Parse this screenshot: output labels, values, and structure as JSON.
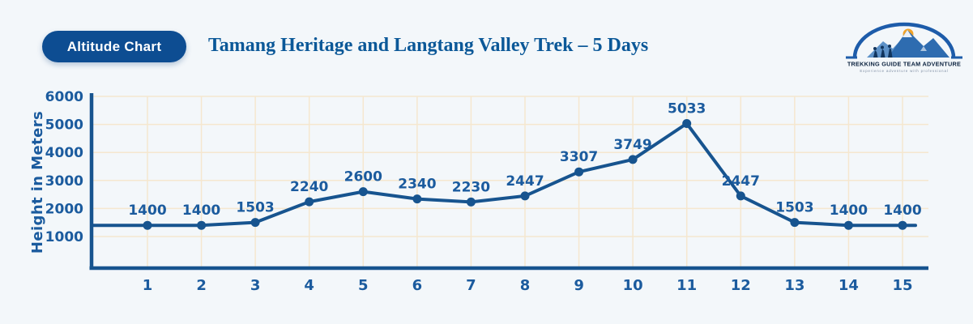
{
  "page": {
    "background": "#f3f7fa"
  },
  "header": {
    "badge": "Altitude Chart",
    "title": "Tamang Heritage and Langtang Valley Trek – 5 Days",
    "logo": {
      "name": "TREKKING GUIDE TEAM ADVENTURE",
      "tagline": "Experience adventure with professional"
    }
  },
  "colors": {
    "badge_bg": "#0d4d92",
    "badge_text": "#ffffff",
    "title_text": "#0b5898",
    "line": "#17548f",
    "grid": "#f5e7cf",
    "label_text": "#1b5b9e",
    "logo_navy": "#0c2340",
    "logo_blue": "#2e6cb0",
    "logo_sun": "#f0a32a"
  },
  "chart_data": {
    "type": "line",
    "title": "Tamang Heritage and Langtang Valley Trek – 5 Days",
    "xlabel": "",
    "ylabel": "Height in Meters",
    "x": [
      1,
      2,
      3,
      4,
      5,
      6,
      7,
      8,
      9,
      10,
      11,
      12,
      13,
      14,
      15
    ],
    "values": [
      1400,
      1400,
      1503,
      2240,
      2600,
      2340,
      2230,
      2447,
      3307,
      3749,
      5033,
      2447,
      1503,
      1400,
      1400
    ],
    "yticks": [
      1000,
      2000,
      3000,
      4000,
      5000,
      6000
    ],
    "ylim": [
      1000,
      6000
    ],
    "grid": true,
    "legend": "none",
    "marker": "circle"
  }
}
